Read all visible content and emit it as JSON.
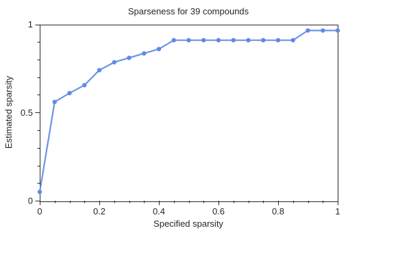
{
  "page": {
    "background": "#ffffff"
  },
  "chart_data": {
    "type": "line",
    "title": "Sparseness for 39 compounds",
    "xlabel": "Specified sparsity",
    "ylabel": "Estimated sparsity",
    "xlim": [
      0,
      1
    ],
    "ylim": [
      0,
      1
    ],
    "grid": false,
    "legend": "none",
    "frame": "box",
    "axes": {
      "x_major_ticks": [
        0,
        0.2,
        0.4,
        0.6,
        0.8,
        1
      ],
      "x_major_tick_labels": [
        "0",
        "0.2",
        "0.4",
        "0.6",
        "0.8",
        "1"
      ],
      "x_minor_tick_step": 0.05,
      "y_major_ticks": [
        0,
        0.5,
        1
      ],
      "y_major_tick_labels": [
        "0",
        "0.5",
        "1"
      ],
      "y_minor_tick_step": 0.1,
      "tick_direction": "out"
    },
    "series": [
      {
        "name": "Estimated sparsity",
        "marker": "circle",
        "x": [
          0,
          0.05,
          0.1,
          0.15,
          0.2,
          0.25,
          0.3,
          0.35,
          0.4,
          0.45,
          0.5,
          0.55,
          0.6,
          0.65,
          0.7,
          0.75,
          0.8,
          0.85,
          0.9,
          0.95,
          1.0
        ],
        "y": [
          0.05,
          0.56,
          0.61,
          0.655,
          0.74,
          0.785,
          0.81,
          0.835,
          0.86,
          0.91,
          0.91,
          0.91,
          0.91,
          0.91,
          0.91,
          0.91,
          0.91,
          0.91,
          0.965,
          0.965,
          0.965
        ]
      }
    ],
    "colors": {
      "line": "#6a93e8",
      "marker": "#6189e4",
      "axis": "#262626",
      "text": "#262626",
      "background": "#ffffff"
    }
  }
}
